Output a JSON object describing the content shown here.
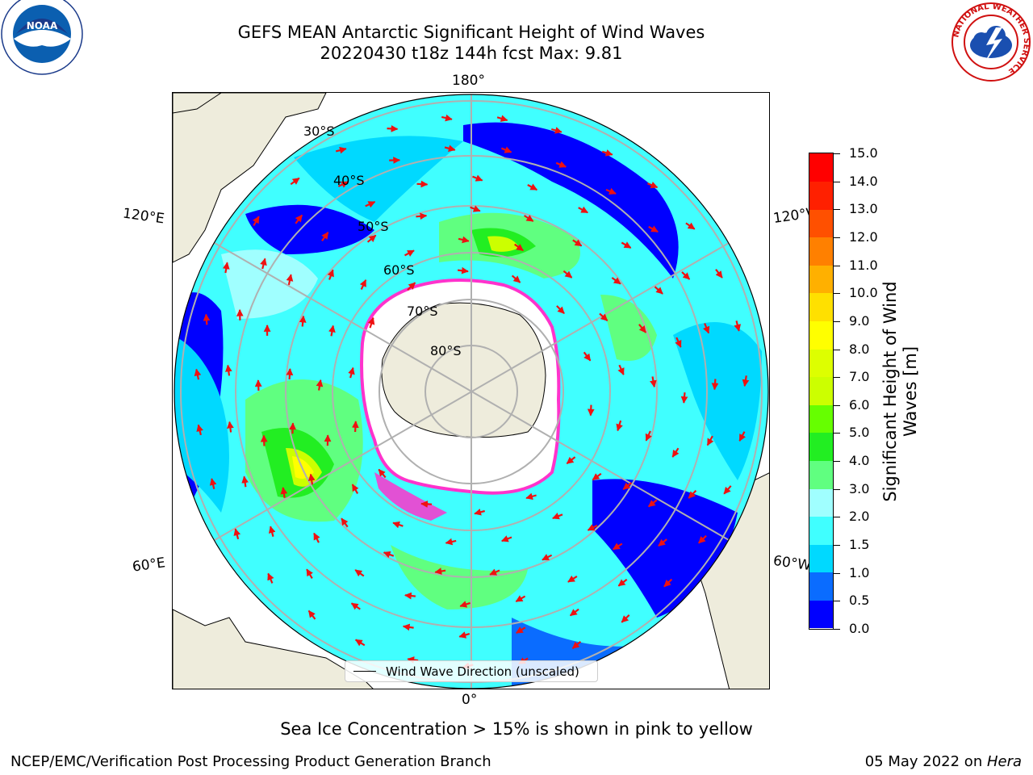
{
  "title": {
    "line1": "GEFS MEAN Antarctic Significant Height of Wind Waves",
    "line2": "20220430 t18z 144h fcst   Max: 9.81"
  },
  "logos": {
    "left": {
      "name": "noaa-logo",
      "text": "NOAA",
      "ring_text": "NATIONAL OCEANIC AND ATMOSPHERIC ADMINISTRATION · U.S. DEPARTMENT OF COMMERCE"
    },
    "right": {
      "name": "nws-logo",
      "ring_text": "NATIONAL WEATHER SERVICE"
    }
  },
  "map": {
    "projection": "south-polar-stereographic",
    "longitude_labels": {
      "top": "180°",
      "bottom": "0°",
      "upper_left": "120°E",
      "upper_right": "120°W",
      "lower_left": "60°E",
      "lower_right": "60°W"
    },
    "latitude_labels": [
      "30°S",
      "40°S",
      "50°S",
      "60°S",
      "70°S",
      "80°S"
    ],
    "legend": "Wind Wave Direction (unscaled)",
    "colors": {
      "land": "#eeecdc",
      "ice": "#ffffff",
      "sea_ice_edge": "#ff33cc",
      "arrow": "#ee1111",
      "grid": "#b0b0b0"
    }
  },
  "colorbar": {
    "title_line1": "Significant Height of Wind",
    "title_line2": "Waves [m]",
    "ticks": [
      "15.0",
      "14.0",
      "13.0",
      "12.0",
      "11.0",
      "10.0",
      "9.0",
      "8.0",
      "7.0",
      "6.0",
      "5.0",
      "4.0",
      "3.0",
      "2.0",
      "1.5",
      "1.0",
      "0.5",
      "0.0"
    ],
    "levels": [
      0.0,
      0.5,
      1.0,
      1.5,
      2.0,
      3.0,
      4.0,
      5.0,
      6.0,
      7.0,
      8.0,
      9.0,
      10.0,
      11.0,
      12.0,
      13.0,
      14.0,
      15.0
    ],
    "colors": [
      "#0000ff",
      "#0a6cff",
      "#00d9ff",
      "#40ffff",
      "#a0ffff",
      "#60ff80",
      "#22ee22",
      "#66ff00",
      "#ccff00",
      "#ddff00",
      "#ffff00",
      "#ffe000",
      "#ffb000",
      "#ff8000",
      "#ff5000",
      "#ff2000",
      "#ff0000"
    ]
  },
  "footer": {
    "note": "Sea Ice Concentration > 15% is shown in pink to yellow",
    "left": "NCEP/EMC/Verification Post Processing Product Generation Branch",
    "right_date": "05 May 2022 on ",
    "right_host": "Hera"
  }
}
